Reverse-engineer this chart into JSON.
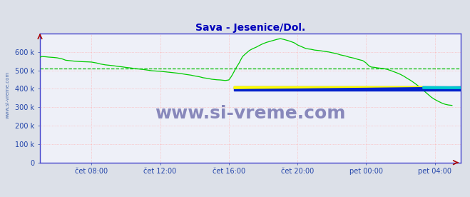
{
  "title": "Sava - Jesenice/Dol.",
  "title_color": "#0000bb",
  "title_fontsize": 10,
  "bg_color": "#dce0e8",
  "plot_bg_color": "#eef0f8",
  "border_color": "#4444cc",
  "grid_color": "#ffaaaa",
  "tick_color": "#2244aa",
  "tick_fontsize": 7,
  "xlim_hours": [
    5.0,
    29.5
  ],
  "ylim": [
    0,
    700
  ],
  "ytick_labels": [
    "0",
    "100 k",
    "200 k",
    "300 k",
    "400 k",
    "500 k",
    "600 k"
  ],
  "ytick_vals": [
    0,
    100,
    200,
    300,
    400,
    500,
    600
  ],
  "xtick_positions": [
    8,
    12,
    16,
    20,
    24,
    28
  ],
  "xtick_labels": [
    "čet 08:00",
    "čet 12:00",
    "čet 16:00",
    "čet 20:00",
    "pet 00:00",
    "pet 04:00"
  ],
  "watermark": "www.si-vreme.com",
  "watermark_color": "#8888bb",
  "watermark_fontsize": 18,
  "dashed_line_value": 510,
  "dashed_line_color": "#00bb00",
  "line_color_pretok": "#00cc00",
  "legend_temp_color": "#cc0000",
  "legend_pretok_color": "#00aa00",
  "axis_arrow_color": "#aa0000",
  "sidebar_text": "www.si-vreme.com",
  "sidebar_color": "#4466aa",
  "pretok_data": [
    [
      5.0,
      570
    ],
    [
      5.1,
      575
    ],
    [
      5.3,
      574
    ],
    [
      5.5,
      572
    ],
    [
      5.8,
      570
    ],
    [
      6.0,
      568
    ],
    [
      6.3,
      562
    ],
    [
      6.5,
      555
    ],
    [
      6.8,
      552
    ],
    [
      7.0,
      550
    ],
    [
      7.3,
      548
    ],
    [
      7.5,
      547
    ],
    [
      7.8,
      546
    ],
    [
      8.0,
      545
    ],
    [
      8.3,
      540
    ],
    [
      8.5,
      535
    ],
    [
      8.8,
      530
    ],
    [
      9.0,
      528
    ],
    [
      9.3,
      525
    ],
    [
      9.5,
      522
    ],
    [
      9.8,
      519
    ],
    [
      10.0,
      516
    ],
    [
      10.3,
      513
    ],
    [
      10.5,
      510
    ],
    [
      10.8,
      507
    ],
    [
      11.0,
      505
    ],
    [
      11.3,
      501
    ],
    [
      11.5,
      498
    ],
    [
      11.8,
      496
    ],
    [
      12.0,
      495
    ],
    [
      12.3,
      492
    ],
    [
      12.5,
      490
    ],
    [
      12.8,
      487
    ],
    [
      13.0,
      485
    ],
    [
      13.3,
      481
    ],
    [
      13.5,
      478
    ],
    [
      13.8,
      474
    ],
    [
      14.0,
      470
    ],
    [
      14.3,
      465
    ],
    [
      14.5,
      460
    ],
    [
      14.8,
      456
    ],
    [
      15.0,
      452
    ],
    [
      15.3,
      449
    ],
    [
      15.5,
      448
    ],
    [
      15.8,
      445
    ],
    [
      16.0,
      448
    ],
    [
      16.1,
      460
    ],
    [
      16.2,
      475
    ],
    [
      16.3,
      492
    ],
    [
      16.4,
      510
    ],
    [
      16.5,
      525
    ],
    [
      16.6,
      540
    ],
    [
      16.7,
      558
    ],
    [
      16.8,
      575
    ],
    [
      17.0,
      592
    ],
    [
      17.2,
      608
    ],
    [
      17.4,
      618
    ],
    [
      17.6,
      626
    ],
    [
      17.8,
      636
    ],
    [
      18.0,
      645
    ],
    [
      18.2,
      652
    ],
    [
      18.5,
      660
    ],
    [
      18.8,
      668
    ],
    [
      19.0,
      672
    ],
    [
      19.2,
      668
    ],
    [
      19.5,
      660
    ],
    [
      19.8,
      650
    ],
    [
      20.0,
      638
    ],
    [
      20.3,
      626
    ],
    [
      20.5,
      618
    ],
    [
      20.8,
      614
    ],
    [
      21.0,
      610
    ],
    [
      21.3,
      607
    ],
    [
      21.5,
      604
    ],
    [
      21.8,
      600
    ],
    [
      22.0,
      596
    ],
    [
      22.3,
      590
    ],
    [
      22.5,
      584
    ],
    [
      22.8,
      578
    ],
    [
      23.0,
      572
    ],
    [
      23.3,
      566
    ],
    [
      23.5,
      560
    ],
    [
      23.8,
      553
    ],
    [
      24.0,
      540
    ],
    [
      24.1,
      530
    ],
    [
      24.2,
      522
    ],
    [
      24.3,
      518
    ],
    [
      24.5,
      516
    ],
    [
      24.7,
      513
    ],
    [
      24.9,
      511
    ],
    [
      25.0,
      510
    ],
    [
      25.2,
      506
    ],
    [
      25.4,
      500
    ],
    [
      25.6,
      493
    ],
    [
      25.8,
      486
    ],
    [
      26.0,
      478
    ],
    [
      26.2,
      468
    ],
    [
      26.4,
      456
    ],
    [
      26.6,
      445
    ],
    [
      26.8,
      432
    ],
    [
      27.0,
      418
    ],
    [
      27.2,
      402
    ],
    [
      27.4,
      386
    ],
    [
      27.6,
      370
    ],
    [
      27.8,
      354
    ],
    [
      28.0,
      342
    ],
    [
      28.2,
      332
    ],
    [
      28.4,
      323
    ],
    [
      28.6,
      316
    ],
    [
      28.8,
      312
    ],
    [
      29.0,
      310
    ]
  ]
}
